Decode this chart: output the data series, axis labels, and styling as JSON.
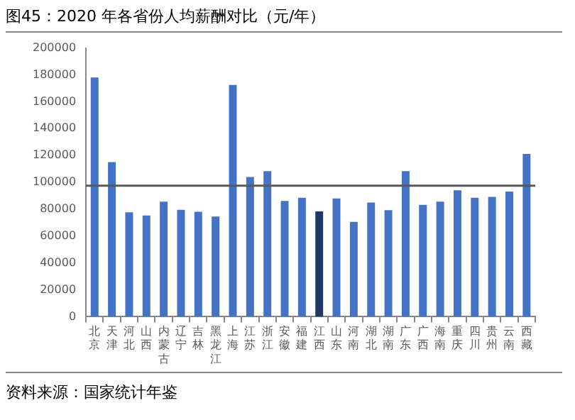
{
  "chart_data": {
    "type": "bar",
    "title": "图45：2020 年各省份人均薪酬对比（元/年）",
    "categories": [
      "北京",
      "天津",
      "河北",
      "山西",
      "内蒙古",
      "辽宁",
      "吉林",
      "黑龙江",
      "上海",
      "江苏",
      "浙江",
      "安徽",
      "福建",
      "江西",
      "山东",
      "河南",
      "湖北",
      "湖南",
      "广东",
      "广西",
      "海南",
      "重庆",
      "四川",
      "贵州",
      "云南",
      "西藏"
    ],
    "values": [
      178000,
      115000,
      77700,
      75300,
      85600,
      79600,
      78100,
      74500,
      172500,
      104000,
      108300,
      86100,
      88500,
      78400,
      88000,
      70500,
      84900,
      79300,
      108300,
      83200,
      85600,
      94000,
      88500,
      89200,
      93200,
      121100
    ],
    "colors": [
      "#4472c4",
      "#4472c4",
      "#4472c4",
      "#4472c4",
      "#4472c4",
      "#4472c4",
      "#4472c4",
      "#4472c4",
      "#4472c4",
      "#4472c4",
      "#4472c4",
      "#4472c4",
      "#4472c4",
      "#1f3864",
      "#4472c4",
      "#4472c4",
      "#4472c4",
      "#4472c4",
      "#4472c4",
      "#4472c4",
      "#4472c4",
      "#4472c4",
      "#4472c4",
      "#4472c4",
      "#4472c4",
      "#4472c4"
    ],
    "ylim": [
      0,
      200000
    ],
    "yticks": [
      0,
      20000,
      40000,
      60000,
      80000,
      100000,
      120000,
      140000,
      160000,
      180000,
      200000
    ],
    "grid": false,
    "legend": false,
    "ref_lines": [
      {
        "axis": "y",
        "value": 97500,
        "color": "#595959"
      }
    ],
    "annotations": [
      "资料来源：国家统计年鉴"
    ]
  }
}
